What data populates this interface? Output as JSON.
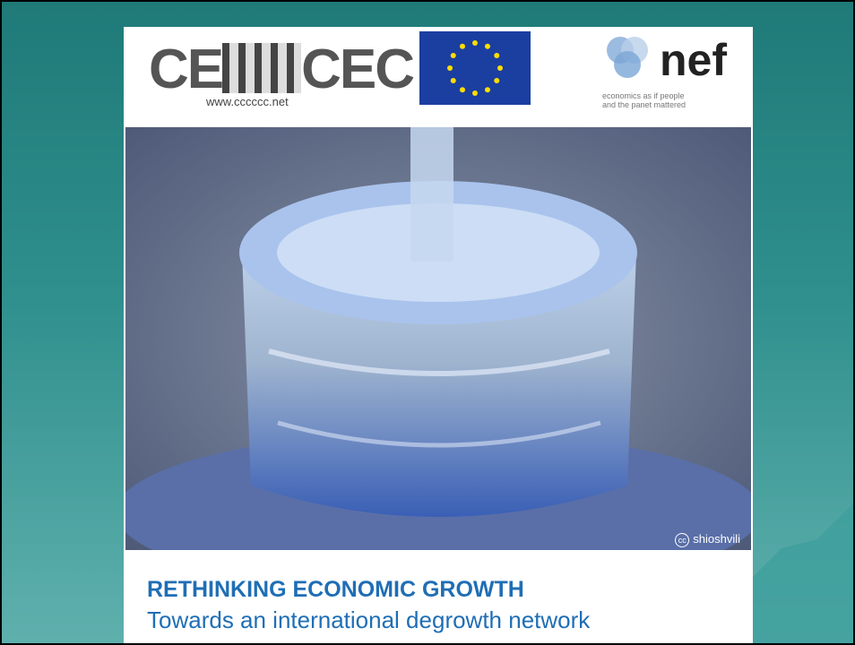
{
  "header": {
    "logo_left": {
      "text_left": "CE",
      "text_right": "CEC",
      "url": "www.cccccc.net"
    },
    "logo_right": {
      "name": "nef",
      "tagline_line1": "economics as if people",
      "tagline_line2": "and the panet mattered"
    }
  },
  "photo": {
    "license": "cc",
    "credit": "shioshvili"
  },
  "title": "RETHINKING ECONOMIC GROWTH",
  "subtitle": "Towards an international degrowth network"
}
